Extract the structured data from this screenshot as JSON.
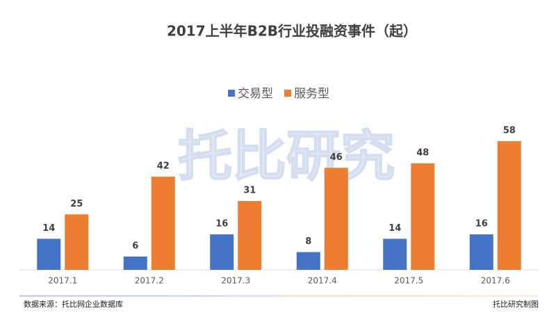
{
  "chart_data": {
    "type": "bar",
    "title": "2017上半年B2B行业投融资事件（起）",
    "categories": [
      "2017.1",
      "2017.2",
      "2017.3",
      "2017.4",
      "2017.5",
      "2017.6"
    ],
    "series": [
      {
        "name": "交易型",
        "color": "#4472c4",
        "values": [
          14,
          6,
          16,
          8,
          14,
          16
        ]
      },
      {
        "name": "服务型",
        "color": "#ed7d31",
        "values": [
          25,
          42,
          31,
          46,
          48,
          58
        ]
      }
    ],
    "legend": "top"
  },
  "watermark": "托比研究",
  "footer": {
    "source": "数据来源：托比网企业数据库",
    "credit": "托比研究制图"
  }
}
